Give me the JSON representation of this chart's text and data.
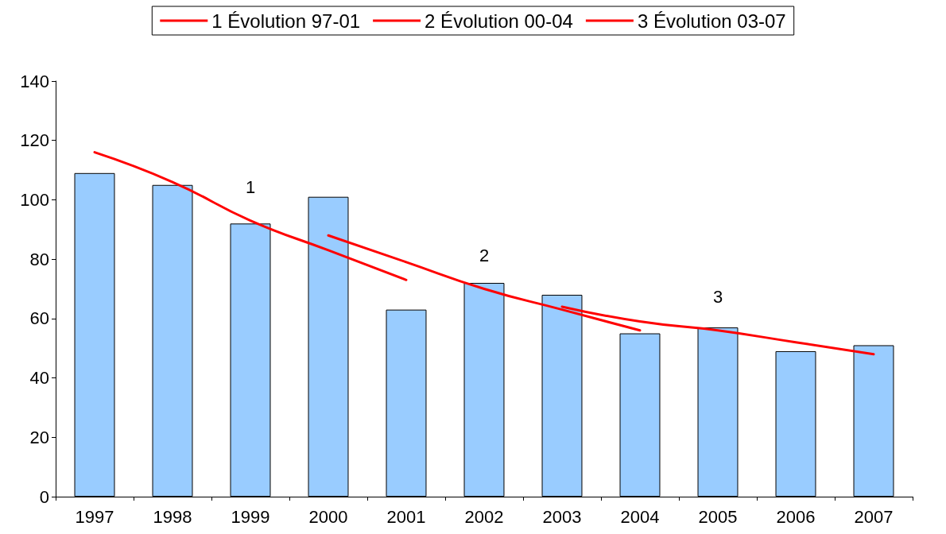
{
  "chart_data": {
    "type": "bar",
    "categories": [
      "1997",
      "1998",
      "1999",
      "2000",
      "2001",
      "2002",
      "2003",
      "2004",
      "2005",
      "2006",
      "2007"
    ],
    "series": [
      {
        "color": "#99ccff",
        "values": [
          109,
          105,
          92,
          101,
          63,
          72,
          68,
          55,
          57,
          49,
          51
        ]
      },
      {
        "type": "line",
        "name": "1 Évolution 97-01",
        "color": "#ff0000",
        "values": [
          116,
          106,
          93,
          83,
          73,
          null,
          null,
          null,
          null,
          null,
          null
        ]
      },
      {
        "type": "line",
        "name": "2 Évolution 00-04",
        "color": "#ff0000",
        "values": [
          null,
          null,
          null,
          88,
          79,
          70,
          63,
          56,
          null,
          null,
          null
        ]
      },
      {
        "type": "line",
        "name": "3 Évolution 03-07",
        "color": "#ff0000",
        "values": [
          null,
          null,
          null,
          null,
          null,
          null,
          64,
          59,
          56,
          52,
          48
        ]
      }
    ],
    "annotations": [
      "1",
      "2",
      "3"
    ],
    "ylim": [
      0,
      140
    ],
    "yticks": [
      0,
      20,
      40,
      60,
      80,
      100,
      120,
      140
    ],
    "grid": false,
    "legend": "top",
    "marker": "none",
    "line_style": "solid"
  }
}
